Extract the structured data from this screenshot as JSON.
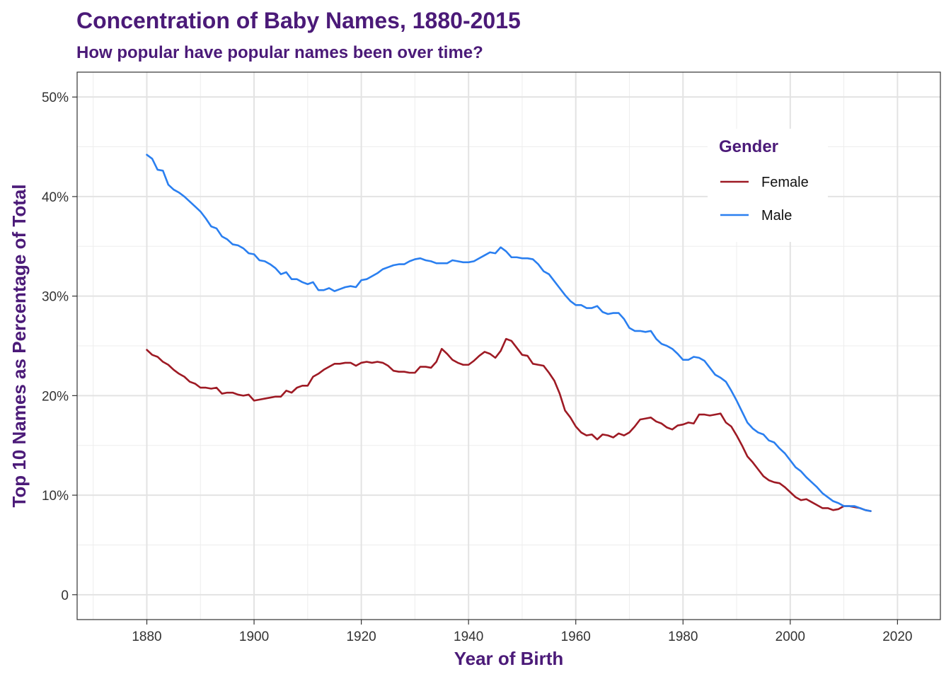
{
  "chart_data": {
    "type": "line",
    "title": "Concentration of Baby Names, 1880-2015",
    "subtitle": "How popular have popular names been over time?",
    "xlabel": "Year of Birth",
    "ylabel": "Top 10 Names as Percentage of Total",
    "xlim": [
      1867,
      2028
    ],
    "ylim": [
      -2.5,
      52.5
    ],
    "x_ticks": [
      1880,
      1900,
      1920,
      1940,
      1960,
      1980,
      2000,
      2020
    ],
    "x_tick_labels": [
      "1880",
      "1900",
      "1920",
      "1940",
      "1960",
      "1980",
      "2000",
      "2020"
    ],
    "y_ticks": [
      0,
      10,
      20,
      30,
      40,
      50
    ],
    "y_tick_labels": [
      "0",
      "10%",
      "20%",
      "30%",
      "40%",
      "50%"
    ],
    "grid": true,
    "legend": {
      "title": "Gender",
      "position": "top-right"
    },
    "series": [
      {
        "name": "Female",
        "color": "#9e1a24",
        "x": [
          1880,
          1881,
          1882,
          1883,
          1884,
          1885,
          1886,
          1887,
          1888,
          1889,
          1890,
          1891,
          1892,
          1893,
          1894,
          1895,
          1896,
          1897,
          1898,
          1899,
          1900,
          1901,
          1902,
          1903,
          1904,
          1905,
          1906,
          1907,
          1908,
          1909,
          1910,
          1911,
          1912,
          1913,
          1914,
          1915,
          1916,
          1917,
          1918,
          1919,
          1920,
          1921,
          1922,
          1923,
          1924,
          1925,
          1926,
          1927,
          1928,
          1929,
          1930,
          1931,
          1932,
          1933,
          1934,
          1935,
          1936,
          1937,
          1938,
          1939,
          1940,
          1941,
          1942,
          1943,
          1944,
          1945,
          1946,
          1947,
          1948,
          1949,
          1950,
          1951,
          1952,
          1953,
          1954,
          1955,
          1956,
          1957,
          1958,
          1959,
          1960,
          1961,
          1962,
          1963,
          1964,
          1965,
          1966,
          1967,
          1968,
          1969,
          1970,
          1971,
          1972,
          1973,
          1974,
          1975,
          1976,
          1977,
          1978,
          1979,
          1980,
          1981,
          1982,
          1983,
          1984,
          1985,
          1986,
          1987,
          1988,
          1989,
          1990,
          1991,
          1992,
          1993,
          1994,
          1995,
          1996,
          1997,
          1998,
          1999,
          2000,
          2001,
          2002,
          2003,
          2004,
          2005,
          2006,
          2007,
          2008,
          2009,
          2010,
          2011,
          2012,
          2013,
          2014,
          2015
        ],
        "values": [
          24.6,
          24.1,
          23.9,
          23.4,
          23.1,
          22.6,
          22.2,
          21.9,
          21.4,
          21.2,
          20.8,
          20.8,
          20.7,
          20.8,
          20.2,
          20.3,
          20.3,
          20.1,
          20.0,
          20.1,
          19.5,
          19.6,
          19.7,
          19.8,
          19.9,
          19.9,
          20.5,
          20.3,
          20.8,
          21.0,
          21.0,
          21.9,
          22.2,
          22.6,
          22.9,
          23.2,
          23.2,
          23.3,
          23.3,
          23.0,
          23.3,
          23.4,
          23.3,
          23.4,
          23.3,
          23.0,
          22.5,
          22.4,
          22.4,
          22.3,
          22.3,
          22.9,
          22.9,
          22.8,
          23.4,
          24.7,
          24.2,
          23.6,
          23.3,
          23.1,
          23.1,
          23.5,
          24.0,
          24.4,
          24.2,
          23.8,
          24.5,
          25.7,
          25.5,
          24.8,
          24.1,
          24.0,
          23.2,
          23.1,
          23.0,
          22.3,
          21.5,
          20.2,
          18.5,
          17.8,
          16.9,
          16.3,
          16.0,
          16.1,
          15.6,
          16.1,
          16.0,
          15.8,
          16.2,
          16.0,
          16.3,
          16.9,
          17.6,
          17.7,
          17.8,
          17.4,
          17.2,
          16.8,
          16.6,
          17.0,
          17.1,
          17.3,
          17.2,
          18.1,
          18.1,
          18.0,
          18.1,
          18.2,
          17.3,
          16.9,
          16.0,
          15.0,
          13.9,
          13.3,
          12.6,
          11.9,
          11.5,
          11.3,
          11.2,
          10.8,
          10.3,
          9.8,
          9.5,
          9.6,
          9.3,
          9.0,
          8.7,
          8.7,
          8.5,
          8.6,
          8.9,
          8.9,
          8.8,
          8.7,
          8.5,
          8.4
        ]
      },
      {
        "name": "Male",
        "color": "#2a7ff0",
        "x": [
          1880,
          1881,
          1882,
          1883,
          1884,
          1885,
          1886,
          1887,
          1888,
          1889,
          1890,
          1891,
          1892,
          1893,
          1894,
          1895,
          1896,
          1897,
          1898,
          1899,
          1900,
          1901,
          1902,
          1903,
          1904,
          1905,
          1906,
          1907,
          1908,
          1909,
          1910,
          1911,
          1912,
          1913,
          1914,
          1915,
          1916,
          1917,
          1918,
          1919,
          1920,
          1921,
          1922,
          1923,
          1924,
          1925,
          1926,
          1927,
          1928,
          1929,
          1930,
          1931,
          1932,
          1933,
          1934,
          1935,
          1936,
          1937,
          1938,
          1939,
          1940,
          1941,
          1942,
          1943,
          1944,
          1945,
          1946,
          1947,
          1948,
          1949,
          1950,
          1951,
          1952,
          1953,
          1954,
          1955,
          1956,
          1957,
          1958,
          1959,
          1960,
          1961,
          1962,
          1963,
          1964,
          1965,
          1966,
          1967,
          1968,
          1969,
          1970,
          1971,
          1972,
          1973,
          1974,
          1975,
          1976,
          1977,
          1978,
          1979,
          1980,
          1981,
          1982,
          1983,
          1984,
          1985,
          1986,
          1987,
          1988,
          1989,
          1990,
          1991,
          1992,
          1993,
          1994,
          1995,
          1996,
          1997,
          1998,
          1999,
          2000,
          2001,
          2002,
          2003,
          2004,
          2005,
          2006,
          2007,
          2008,
          2009,
          2010,
          2011,
          2012,
          2013,
          2014,
          2015
        ],
        "values": [
          44.2,
          43.8,
          42.7,
          42.6,
          41.2,
          40.7,
          40.4,
          40.0,
          39.5,
          39.0,
          38.5,
          37.8,
          37.0,
          36.8,
          36.0,
          35.7,
          35.2,
          35.1,
          34.8,
          34.3,
          34.2,
          33.6,
          33.5,
          33.2,
          32.8,
          32.2,
          32.4,
          31.7,
          31.7,
          31.4,
          31.2,
          31.4,
          30.6,
          30.6,
          30.8,
          30.5,
          30.7,
          30.9,
          31.0,
          30.9,
          31.6,
          31.7,
          32.0,
          32.3,
          32.7,
          32.9,
          33.1,
          33.2,
          33.2,
          33.5,
          33.7,
          33.8,
          33.6,
          33.5,
          33.3,
          33.3,
          33.3,
          33.6,
          33.5,
          33.4,
          33.4,
          33.5,
          33.8,
          34.1,
          34.4,
          34.3,
          34.9,
          34.5,
          33.9,
          33.9,
          33.8,
          33.8,
          33.7,
          33.2,
          32.5,
          32.2,
          31.5,
          30.8,
          30.1,
          29.5,
          29.1,
          29.1,
          28.8,
          28.8,
          29.0,
          28.4,
          28.2,
          28.3,
          28.3,
          27.7,
          26.8,
          26.5,
          26.5,
          26.4,
          26.5,
          25.7,
          25.2,
          25.0,
          24.7,
          24.2,
          23.6,
          23.6,
          23.9,
          23.8,
          23.5,
          22.8,
          22.1,
          21.8,
          21.4,
          20.5,
          19.5,
          18.4,
          17.3,
          16.7,
          16.3,
          16.1,
          15.5,
          15.3,
          14.7,
          14.2,
          13.5,
          12.8,
          12.4,
          11.8,
          11.3,
          10.8,
          10.2,
          9.8,
          9.4,
          9.2,
          8.9,
          8.9,
          8.9,
          8.7,
          8.5,
          8.4
        ]
      }
    ]
  }
}
